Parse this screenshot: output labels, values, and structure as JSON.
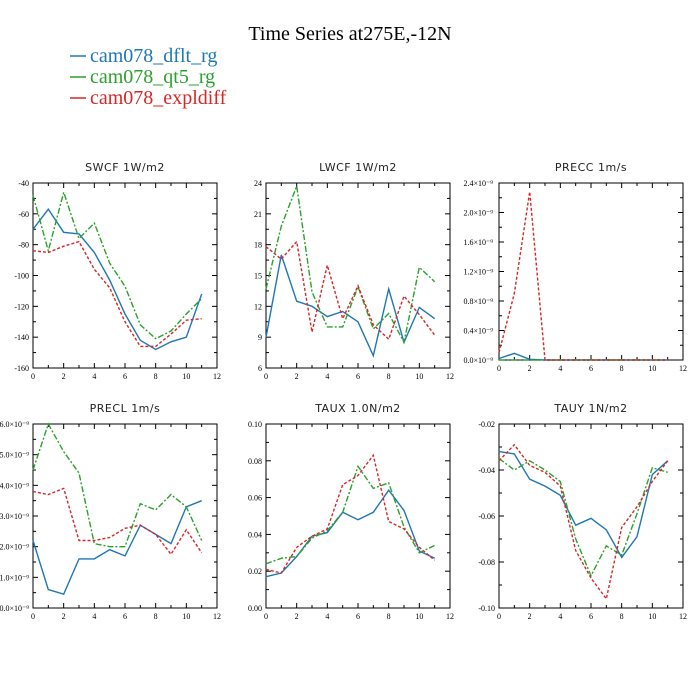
{
  "figure_title": "Time Series at275E,-12N",
  "legend": [
    {
      "name": "cam078_dflt_rg",
      "color": "#1f77b4",
      "dash": ""
    },
    {
      "name": "cam078_qt5_rg",
      "color": "#2ca02c",
      "dash": "6,2,2,2"
    },
    {
      "name": "cam078_expldiff",
      "color": "#d62728",
      "dash": "3,2"
    }
  ],
  "chart_data": [
    {
      "type": "line",
      "title": "SWCF   1W/m2",
      "x": [
        0,
        1,
        2,
        3,
        4,
        5,
        6,
        7,
        8,
        9,
        10,
        11
      ],
      "xlim": [
        0,
        12
      ],
      "ylim": [
        -160,
        -40
      ],
      "xticks": [
        "0",
        "2",
        "4",
        "6",
        "8",
        "10",
        "12"
      ],
      "yticks": [
        "-160",
        "-140",
        "-120",
        "-100",
        "-80",
        "-60",
        "-40"
      ],
      "series": [
        {
          "name": "cam078_dflt_rg",
          "values": [
            -70,
            -57,
            -72,
            -73,
            -85,
            -103,
            -125,
            -142,
            -148,
            -143,
            -140,
            -112
          ]
        },
        {
          "name": "cam078_qt5_rg",
          "values": [
            -48,
            -84,
            -46,
            -76,
            -66,
            -92,
            -107,
            -132,
            -141,
            -136,
            -125,
            -115
          ]
        },
        {
          "name": "cam078_expldiff",
          "values": [
            -84,
            -85,
            -81,
            -78,
            -96,
            -108,
            -130,
            -146,
            -146,
            -138,
            -129,
            -128
          ]
        }
      ]
    },
    {
      "type": "line",
      "title": "LWCF   1W/m2",
      "x": [
        0,
        1,
        2,
        3,
        4,
        5,
        6,
        7,
        8,
        9,
        10,
        11
      ],
      "xlim": [
        0,
        12
      ],
      "ylim": [
        6,
        24
      ],
      "xticks": [
        "0",
        "2",
        "4",
        "6",
        "8",
        "10",
        "12"
      ],
      "yticks": [
        "6",
        "9",
        "12",
        "15",
        "18",
        "21",
        "24"
      ],
      "series": [
        {
          "name": "cam078_dflt_rg",
          "values": [
            9.0,
            17.0,
            12.5,
            12.0,
            11.0,
            11.5,
            10.5,
            7.2,
            13.7,
            8.5,
            11.9,
            10.8
          ]
        },
        {
          "name": "cam078_qt5_rg",
          "values": [
            13.7,
            19.8,
            23.7,
            13.4,
            10.0,
            10.0,
            13.9,
            9.8,
            11.3,
            8.5,
            15.8,
            14.4
          ]
        },
        {
          "name": "cam078_expldiff",
          "values": [
            17.8,
            16.6,
            18.3,
            9.5,
            16.0,
            10.8,
            14.0,
            10.2,
            8.8,
            13.0,
            11.2,
            9.2
          ]
        }
      ]
    },
    {
      "type": "line",
      "title": "PRECC   1m/s",
      "x": [
        0,
        1,
        2,
        3,
        4,
        5,
        6,
        7,
        8,
        9,
        10,
        11
      ],
      "xlim": [
        0,
        12
      ],
      "ylim": [
        0,
        2.4e-09
      ],
      "xticks": [
        "0",
        "2",
        "4",
        "6",
        "8",
        "10",
        "12"
      ],
      "yticks": [
        "0.0×10⁻⁹",
        "0.4×10⁻⁹",
        "0.8×10⁻⁹",
        "1.2×10⁻⁹",
        "1.6×10⁻⁹",
        "2.0×10⁻⁹",
        "2.4×10⁻⁹"
      ],
      "series": [
        {
          "name": "cam078_dflt_rg",
          "values": [
            2e-11,
            9e-11,
            1e-11,
            0,
            0,
            0,
            0,
            0,
            0,
            0,
            0,
            0
          ]
        },
        {
          "name": "cam078_qt5_rg",
          "values": [
            0,
            0,
            0,
            0,
            0,
            0,
            0,
            0,
            0,
            0,
            0,
            0
          ]
        },
        {
          "name": "cam078_expldiff",
          "values": [
            1e-10,
            9e-10,
            2.28e-09,
            0,
            0,
            0,
            0,
            0,
            0,
            0,
            0,
            0
          ]
        }
      ]
    },
    {
      "type": "line",
      "title": "PRECL   1m/s",
      "x": [
        0,
        1,
        2,
        3,
        4,
        5,
        6,
        7,
        8,
        9,
        10,
        11
      ],
      "xlim": [
        0,
        12
      ],
      "ylim": [
        0,
        6e-09
      ],
      "xticks": [
        "0",
        "2",
        "4",
        "6",
        "8",
        "10",
        "12"
      ],
      "yticks": [
        "0.0×10⁻⁹",
        "1.0×10⁻⁹",
        "2.0×10⁻⁹",
        "3.0×10⁻⁹",
        "4.0×10⁻⁹",
        "5.0×10⁻⁹",
        "6.0×10⁻⁹"
      ],
      "series": [
        {
          "name": "cam078_dflt_rg",
          "values": [
            2.2e-09,
            6e-10,
            4.5e-10,
            1.6e-09,
            1.6e-09,
            1.9e-09,
            1.7e-09,
            2.7e-09,
            2.4e-09,
            2.1e-09,
            3.3e-09,
            3.5e-09
          ]
        },
        {
          "name": "cam078_qt5_rg",
          "values": [
            4.5e-09,
            6e-09,
            5.1e-09,
            4.4e-09,
            2.1e-09,
            2e-09,
            2e-09,
            3.4e-09,
            3.2e-09,
            3.7e-09,
            3.3e-09,
            2.2e-09
          ]
        },
        {
          "name": "cam078_expldiff",
          "values": [
            3.8e-09,
            3.7e-09,
            3.9e-09,
            2.2e-09,
            2.2e-09,
            2.3e-09,
            2.6e-09,
            2.7e-09,
            2.4e-09,
            1.75e-09,
            2.55e-09,
            1.8e-09
          ]
        }
      ]
    },
    {
      "type": "line",
      "title": "TAUX   1.0N/m2",
      "x": [
        0,
        1,
        2,
        3,
        4,
        5,
        6,
        7,
        8,
        9,
        10,
        11
      ],
      "xlim": [
        0,
        12
      ],
      "ylim": [
        0,
        0.1
      ],
      "xticks": [
        "0",
        "2",
        "4",
        "6",
        "8",
        "10",
        "12"
      ],
      "yticks": [
        "0.00",
        "0.02",
        "0.04",
        "0.06",
        "0.08",
        "0.10"
      ],
      "series": [
        {
          "name": "cam078_dflt_rg",
          "values": [
            0.017,
            0.019,
            0.028,
            0.039,
            0.041,
            0.052,
            0.048,
            0.052,
            0.064,
            0.053,
            0.031,
            0.027
          ]
        },
        {
          "name": "cam078_qt5_rg",
          "values": [
            0.024,
            0.027,
            0.028,
            0.038,
            0.042,
            0.052,
            0.077,
            0.065,
            0.068,
            0.044,
            0.03,
            0.034
          ]
        },
        {
          "name": "cam078_expldiff",
          "values": [
            0.021,
            0.019,
            0.033,
            0.039,
            0.043,
            0.067,
            0.072,
            0.083,
            0.047,
            0.043,
            0.033,
            0.026
          ]
        }
      ]
    },
    {
      "type": "line",
      "title": "TAUY   1N/m2",
      "x": [
        0,
        1,
        2,
        3,
        4,
        5,
        6,
        7,
        8,
        9,
        10,
        11
      ],
      "xlim": [
        0,
        12
      ],
      "ylim": [
        -0.1,
        -0.02
      ],
      "xticks": [
        "0",
        "2",
        "4",
        "6",
        "8",
        "10",
        "12"
      ],
      "yticks": [
        "-0.10",
        "-0.08",
        "-0.06",
        "-0.04",
        "-0.02"
      ],
      "series": [
        {
          "name": "cam078_dflt_rg",
          "values": [
            -0.032,
            -0.033,
            -0.044,
            -0.047,
            -0.051,
            -0.064,
            -0.061,
            -0.066,
            -0.078,
            -0.069,
            -0.042,
            -0.036
          ]
        },
        {
          "name": "cam078_qt5_rg",
          "values": [
            -0.035,
            -0.04,
            -0.036,
            -0.04,
            -0.045,
            -0.07,
            -0.086,
            -0.073,
            -0.077,
            -0.059,
            -0.039,
            -0.041
          ]
        },
        {
          "name": "cam078_expldiff",
          "values": [
            -0.036,
            -0.029,
            -0.038,
            -0.041,
            -0.047,
            -0.075,
            -0.087,
            -0.096,
            -0.065,
            -0.056,
            -0.045,
            -0.036
          ]
        }
      ]
    }
  ]
}
